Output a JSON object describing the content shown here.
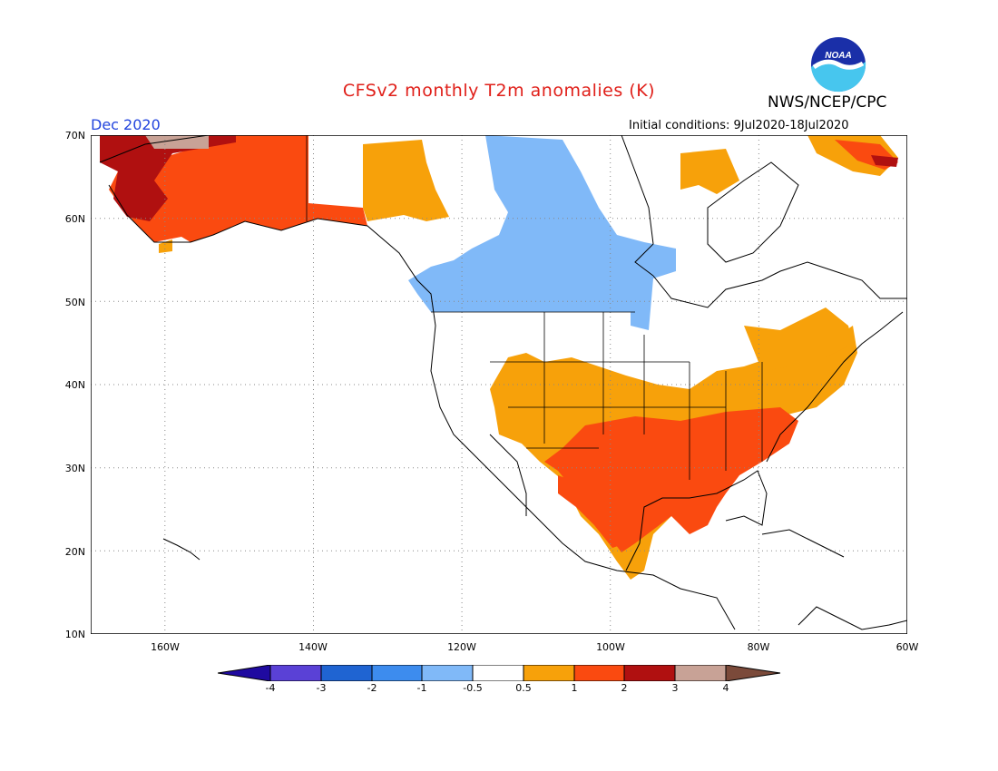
{
  "title": "CFSv2 monthly T2m anomalies (K)",
  "agency": "NWS/NCEP/CPC",
  "logo_text": "NOAA",
  "month_label": "Dec 2020",
  "initial_conditions": "Initial conditions: 9Jul2020-18Jul2020",
  "map": {
    "projection": "lat-lon",
    "lat_range": [
      10,
      70
    ],
    "lon_range": [
      -170,
      -60
    ],
    "lat_ticks": [
      "70N",
      "60N",
      "50N",
      "40N",
      "30N",
      "20N",
      "10N"
    ],
    "lon_ticks": [
      "160W",
      "140W",
      "120W",
      "100W",
      "80W",
      "60W"
    ],
    "grid": "dotted"
  },
  "colorbar": {
    "tick_labels": [
      "-4",
      "-3",
      "-2",
      "-1",
      "-0.5",
      "0.5",
      "1",
      "2",
      "3",
      "4"
    ],
    "colors": [
      "#1f0aa0",
      "#5a41d6",
      "#1f64d2",
      "#3d8cee",
      "#80b9f8",
      "#ffffff",
      "#f7a10a",
      "#fa4a10",
      "#b01010",
      "#c8a296",
      "#7b4a3a"
    ]
  },
  "regions": [
    {
      "area": "Alaska",
      "anomaly": "1 to 2 K, 2 to 3 K in west, 3 to 4 K at north tip"
    },
    {
      "area": "Yukon / NW Canada",
      "anomaly": "0.5 to 2 K"
    },
    {
      "area": "Central Canada (Saskatchewan to Hudson Bay)",
      "anomaly": "-0.5 to -1 K"
    },
    {
      "area": "Southern US Plains, Texas, Gulf Coast, Southeast",
      "anomaly": "1 to 2 K"
    },
    {
      "area": "Southwest US, Mid-Atlantic, Northeast",
      "anomaly": "0.5 to 1 K"
    },
    {
      "area": "Mexico",
      "anomaly": "0.5 to 2 K"
    },
    {
      "area": "Greenland west coast",
      "anomaly": "0.5 to 3 K"
    },
    {
      "area": "Northern US / Great Lakes / Pacific Northwest",
      "anomaly": "-0.5 to 0.5 K"
    }
  ]
}
